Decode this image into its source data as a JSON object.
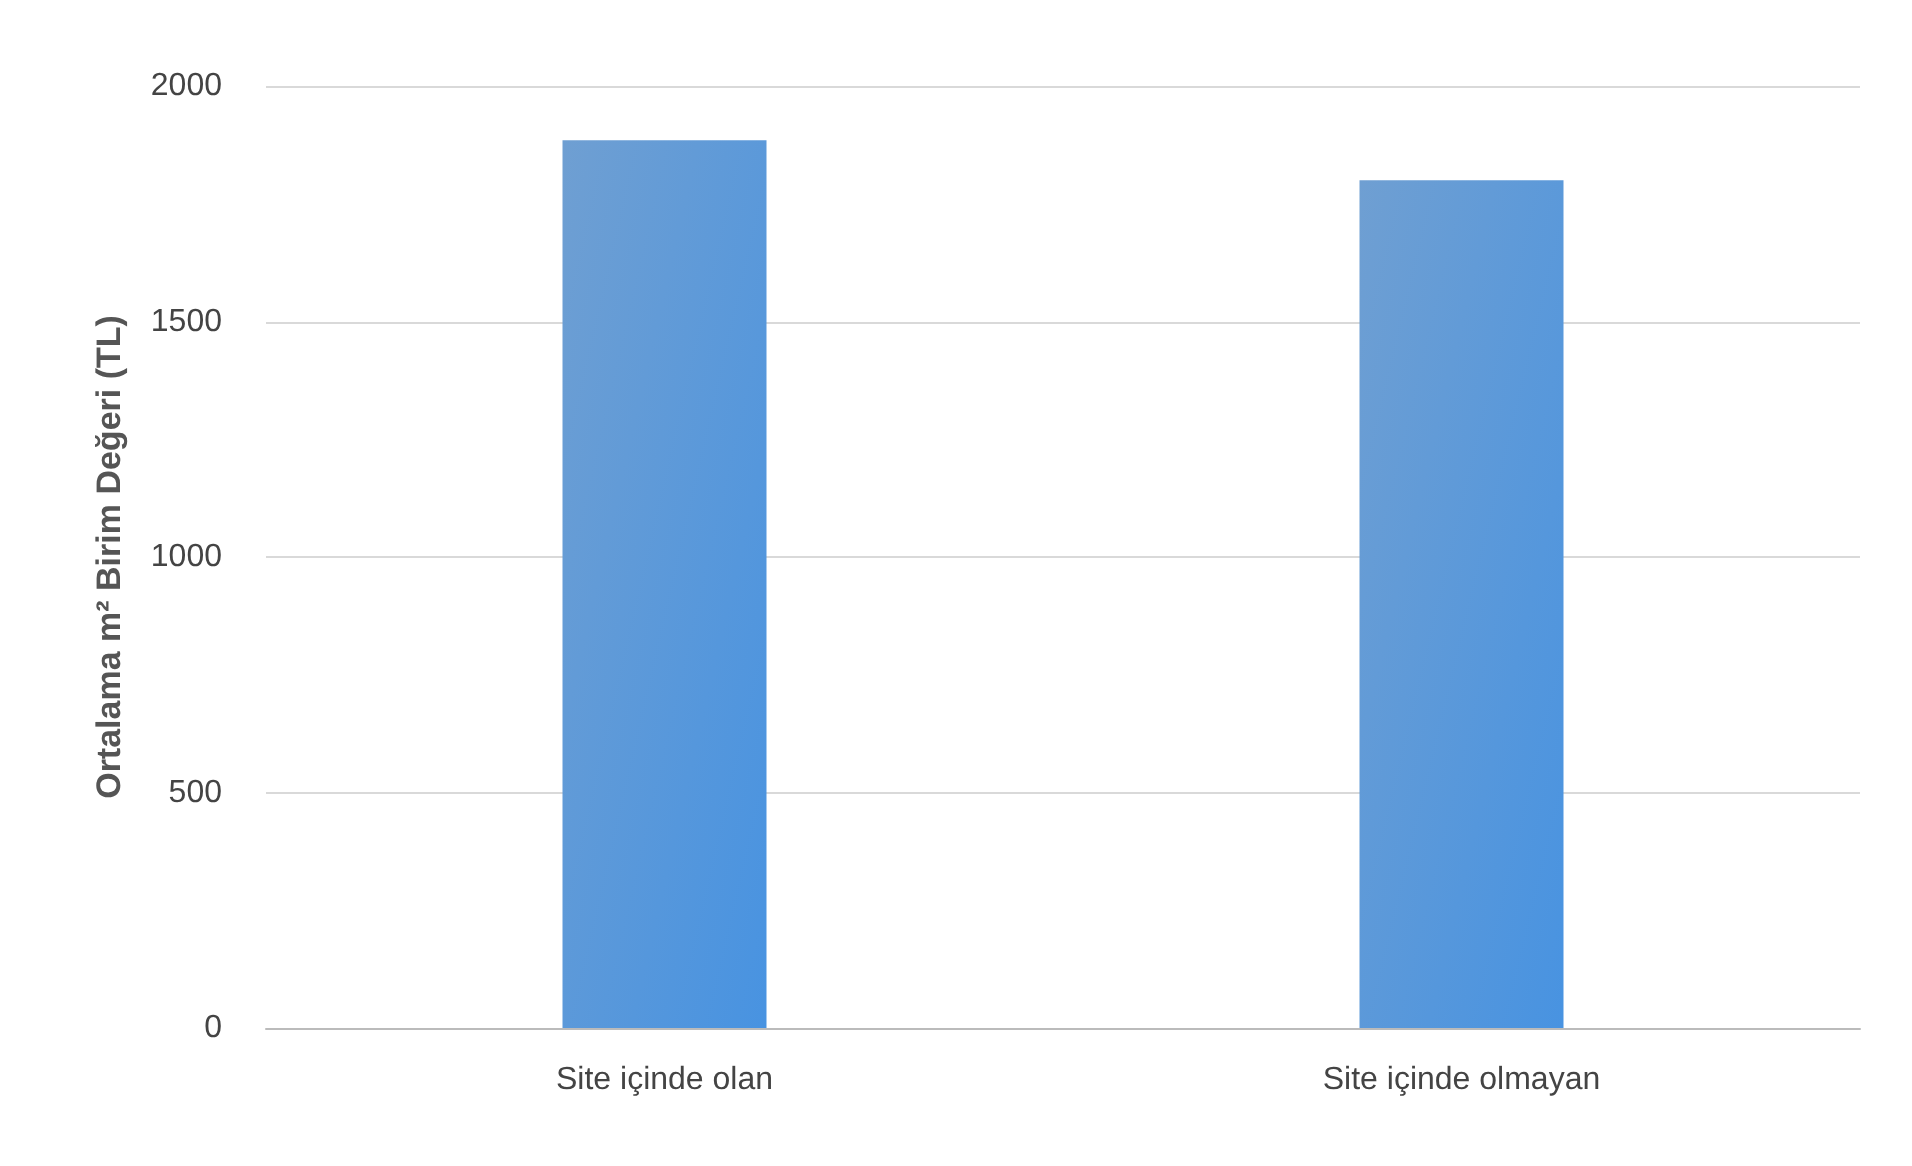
{
  "chart_data": {
    "type": "bar",
    "ylabel": "Ortalama m² Birim Değeri (TL)",
    "categories": [
      "Site içinde olan",
      "Site içinde olmayan"
    ],
    "values": [
      1885,
      1800
    ],
    "color": "#3f80c4",
    "ylim": [
      0,
      2000
    ],
    "yticks": [
      0,
      500,
      1000,
      1500,
      2000
    ],
    "grid": "y"
  }
}
